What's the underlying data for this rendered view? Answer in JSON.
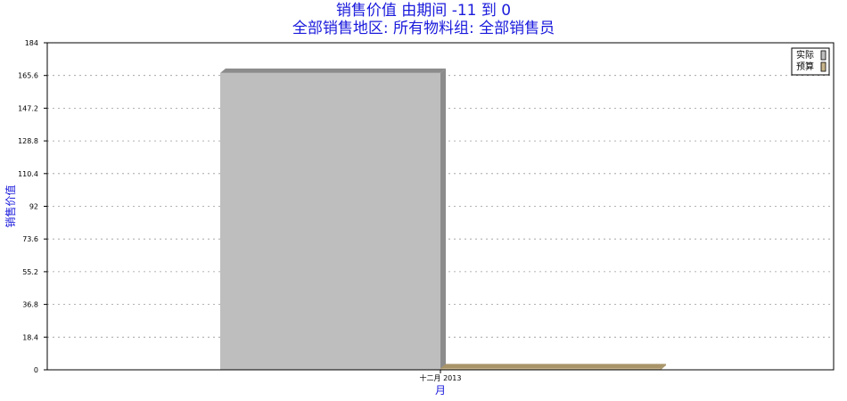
{
  "chart_data": {
    "type": "bar",
    "title": [
      "销售价值 由期间 -11 到 0",
      "全部销售地区: 所有物料组: 全部销售员"
    ],
    "xlabel": "月",
    "ylabel": "销售价值",
    "categories": [
      "十二月 2013"
    ],
    "series": [
      {
        "name": "实际",
        "values": [
          167
        ],
        "color": "#bebebe",
        "shade": "#8c8c8c"
      },
      {
        "name": "预算",
        "values": [
          0.8
        ],
        "color": "#c8b48a",
        "shade": "#a89468"
      }
    ],
    "ylim": [
      0,
      184
    ],
    "yticks": [
      "0",
      "18.4",
      "36.8",
      "55.2",
      "73.6",
      "92",
      "110.4",
      "128.8",
      "147.2",
      "165.6",
      "184"
    ],
    "grid": true,
    "legend": "top-right"
  }
}
